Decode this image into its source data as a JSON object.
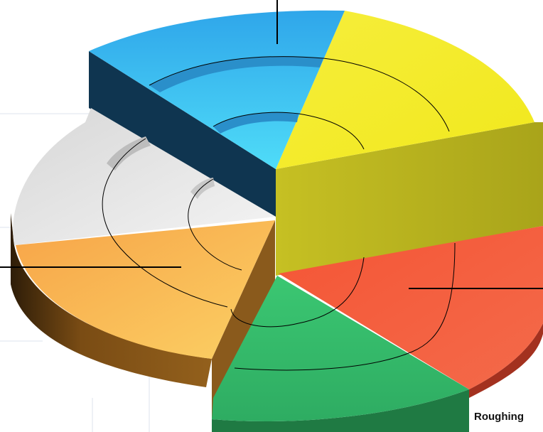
{
  "chart_data": {
    "type": "pie",
    "style": "3d-exploded-ring",
    "caption": "Roughing",
    "slices": [
      {
        "color": "#33b0ee",
        "share": 0.09
      },
      {
        "color": "#f7ec26",
        "share": 0.3
      },
      {
        "color": "#f26040",
        "share": 0.14
      },
      {
        "color": "#33bc6c",
        "share": 0.14
      },
      {
        "color": "#f9b552",
        "share": 0.14
      },
      {
        "color": "#e2e2e2",
        "share": 0.19
      }
    ],
    "ring_count": 3,
    "grid": true,
    "legend": "none"
  }
}
